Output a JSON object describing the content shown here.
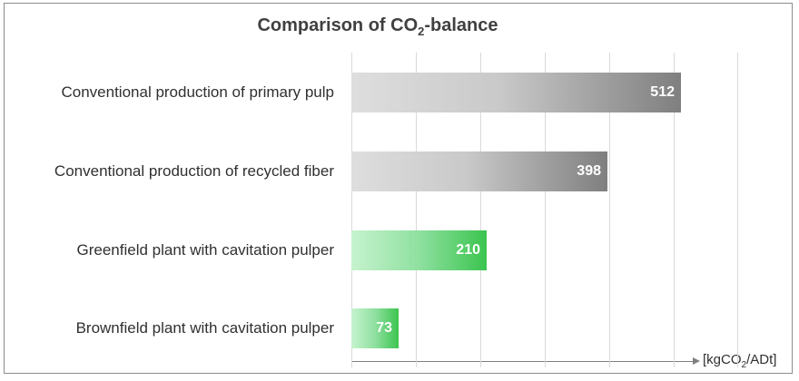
{
  "chart_data": {
    "type": "bar",
    "orientation": "horizontal",
    "title": {
      "main": "Comparison of CO",
      "sub": "2",
      "tail": "-balance"
    },
    "unit_label": {
      "pre": "[kgCO",
      "sub": "2",
      "post": "/ADt]"
    },
    "categories": [
      "Conventional production of primary pulp",
      "Conventional production of recycled fiber",
      "Greenfield plant with cavitation pulper",
      "Brownfield plant with cavitation pulper"
    ],
    "values": [
      512,
      398,
      210,
      73
    ],
    "bar_styles": [
      "grey",
      "grey",
      "green",
      "green"
    ],
    "xlim": [
      0,
      600
    ],
    "grid": true,
    "legend": "none",
    "colors": {
      "grey_start": "#dedede",
      "grey_end": "#7f7f7f",
      "green_start": "#c6f3cf",
      "green_end": "#3bc44f"
    }
  }
}
